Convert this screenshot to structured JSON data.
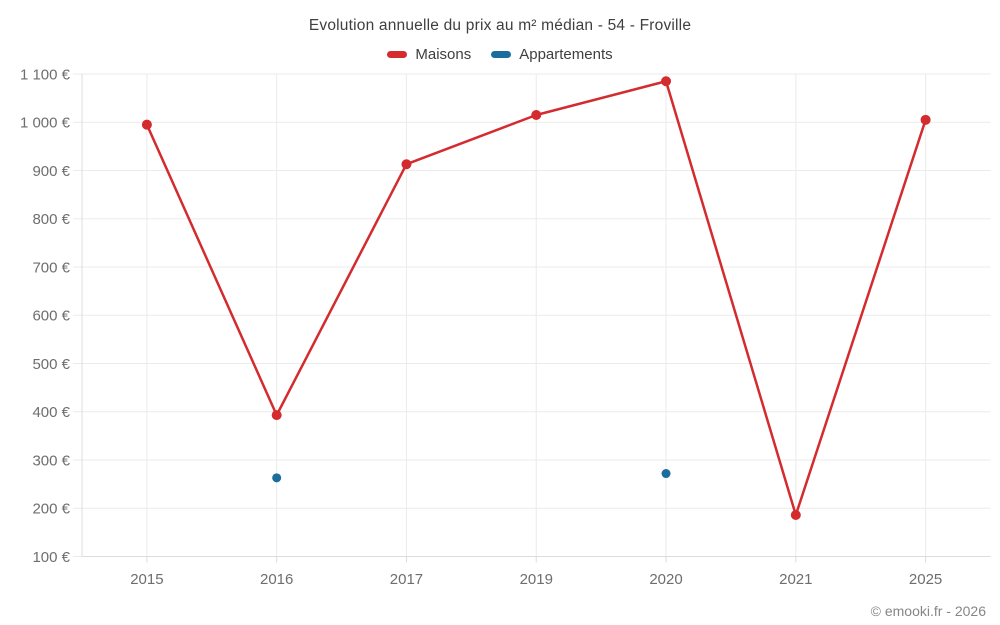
{
  "chart_data": {
    "type": "line",
    "title": "Evolution annuelle du prix au m² médian - 54 - Froville",
    "categories": [
      "2015",
      "2016",
      "2017",
      "2019",
      "2020",
      "2021",
      "2025"
    ],
    "series": [
      {
        "name": "Maisons",
        "color": "#d32b2e",
        "style": "line+markers",
        "values": [
          995,
          393,
          913,
          1015,
          1085,
          186,
          1005
        ]
      },
      {
        "name": "Appartements",
        "color": "#1b6d9e",
        "style": "markers",
        "values": [
          null,
          263,
          null,
          null,
          272,
          null,
          null
        ]
      }
    ],
    "xlabel": "",
    "ylabel": "",
    "ylim": [
      100,
      1100
    ],
    "y_ticks": [
      {
        "value": 100,
        "label": "100 €"
      },
      {
        "value": 200,
        "label": "200 €"
      },
      {
        "value": 300,
        "label": "300 €"
      },
      {
        "value": 400,
        "label": "400 €"
      },
      {
        "value": 500,
        "label": "500 €"
      },
      {
        "value": 600,
        "label": "600 €"
      },
      {
        "value": 700,
        "label": "700 €"
      },
      {
        "value": 800,
        "label": "800 €"
      },
      {
        "value": 900,
        "label": "900 €"
      },
      {
        "value": 1000,
        "label": "1 000 €"
      },
      {
        "value": 1100,
        "label": "1 100 €"
      }
    ],
    "grid": true,
    "legend_position": "top",
    "attribution": "© emooki.fr - 2026"
  }
}
